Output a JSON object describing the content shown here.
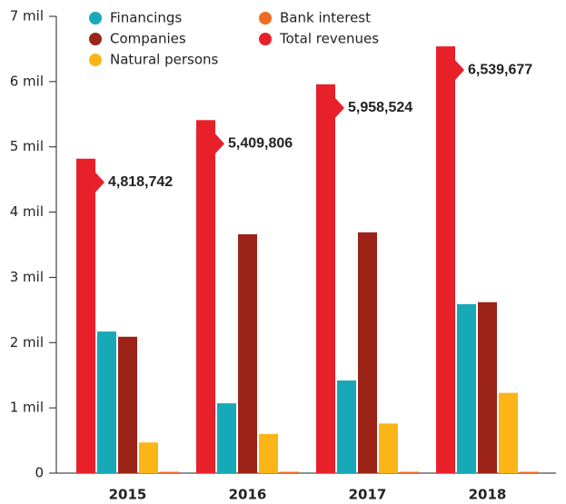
{
  "chart_data": {
    "type": "bar",
    "categories": [
      "2015",
      "2016",
      "2017",
      "2018"
    ],
    "series": [
      {
        "name": "Financings",
        "color": "#17a9b8",
        "values": [
          2.17,
          1.07,
          1.42,
          2.59
        ]
      },
      {
        "name": "Companies",
        "color": "#9b2318",
        "values": [
          2.09,
          3.66,
          3.69,
          2.62
        ]
      },
      {
        "name": "Natural persons",
        "color": "#fbb516",
        "values": [
          0.47,
          0.6,
          0.76,
          1.23
        ]
      },
      {
        "name": "Bank interest",
        "color": "#ee6b23",
        "values": [
          0.02,
          0.02,
          0.02,
          0.02
        ]
      },
      {
        "name": "Total revenues",
        "color": "#e8202a",
        "values": [
          4.818742,
          5.409806,
          5.958524,
          6.539677
        ],
        "value_labels": [
          "4,818,742",
          "5,409,806",
          "5,958,524",
          "6,539,677"
        ]
      }
    ],
    "ylim": [
      0,
      7
    ],
    "yticks": [
      0,
      {
        "value": 1,
        "label": "1 mil"
      },
      {
        "value": 2,
        "label": "2 mil"
      },
      {
        "value": 3,
        "label": "3 mil"
      },
      {
        "value": 4,
        "label": "4 mil"
      },
      {
        "value": 5,
        "label": "5 mil"
      },
      {
        "value": 6,
        "label": "6 mil"
      },
      {
        "value": 7,
        "label": "7 mil"
      }
    ]
  }
}
